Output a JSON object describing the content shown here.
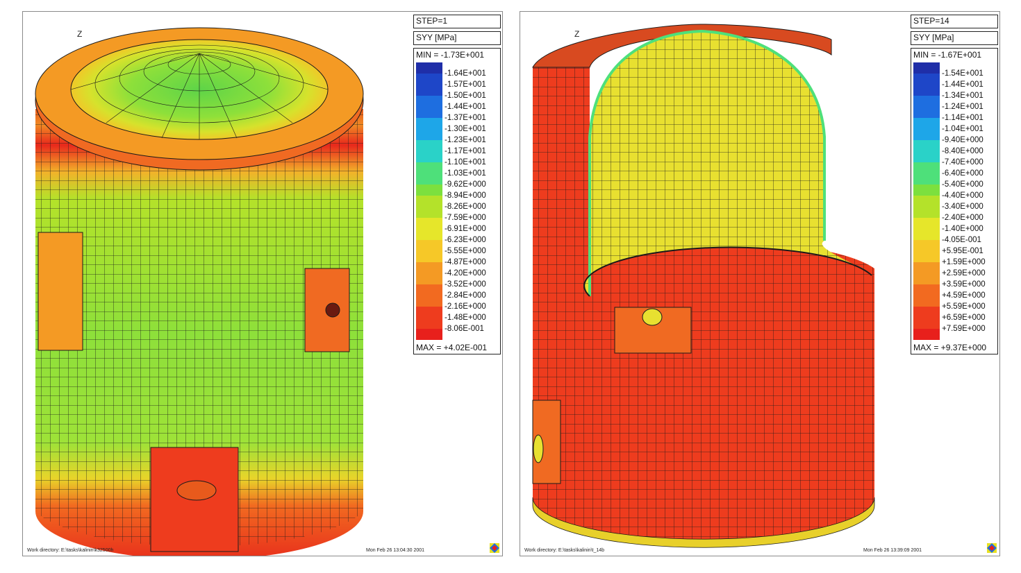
{
  "panels": [
    {
      "step": "STEP=1",
      "unit": "SYY [MPa]",
      "min": "MIN = -1.73E+001",
      "max": "MAX = +4.02E-001",
      "axis": "Z",
      "ticks": [
        "-1.64E+001",
        "-1.57E+001",
        "-1.50E+001",
        "-1.44E+001",
        "-1.37E+001",
        "-1.30E+001",
        "-1.23E+001",
        "-1.17E+001",
        "-1.10E+001",
        "-1.03E+001",
        "-9.62E+000",
        "-8.94E+000",
        "-8.26E+000",
        "-7.59E+000",
        "-6.91E+000",
        "-6.23E+000",
        "-5.55E+000",
        "-4.87E+000",
        "-4.20E+000",
        "-3.52E+000",
        "-2.84E+000",
        "-2.16E+000",
        "-1.48E+000",
        "-8.06E-001"
      ],
      "work_dir": "Work directory: E:\\tasks\\kalinin\\k32500h",
      "date": "Mon Feb 26 13:04:30 2001"
    },
    {
      "step": "STEP=14",
      "unit": "SYY [MPa]",
      "min": "MIN = -1.67E+001",
      "max": "MAX = +9.37E+000",
      "axis": "Z",
      "ticks": [
        "-1.54E+001",
        "-1.44E+001",
        "-1.34E+001",
        "-1.24E+001",
        "-1.14E+001",
        "-1.04E+001",
        "-9.40E+000",
        "-8.40E+000",
        "-7.40E+000",
        "-6.40E+000",
        "-5.40E+000",
        "-4.40E+000",
        "-3.40E+000",
        "-2.40E+000",
        "-1.40E+000",
        "-4.05E-001",
        "+5.95E-001",
        "+1.59E+000",
        "+2.59E+000",
        "+3.59E+000",
        "+4.59E+000",
        "+5.59E+000",
        "+6.59E+000",
        "+7.59E+000"
      ],
      "work_dir": "Work directory: E:\\tasks\\kalinin\\t_14b",
      "date": "Mon Feb 26 13:39:09 2001"
    }
  ],
  "colors": {
    "colormap": [
      "#1f2ea8",
      "#1e46c8",
      "#1e6ee0",
      "#1ea6e8",
      "#2ad2c8",
      "#4ee07a",
      "#7ce03e",
      "#b4e22a",
      "#e6e62a",
      "#f6c828",
      "#f49a24",
      "#f26a20",
      "#ee3c1e",
      "#e8201c"
    ],
    "mesh": "#1a1a1a"
  }
}
